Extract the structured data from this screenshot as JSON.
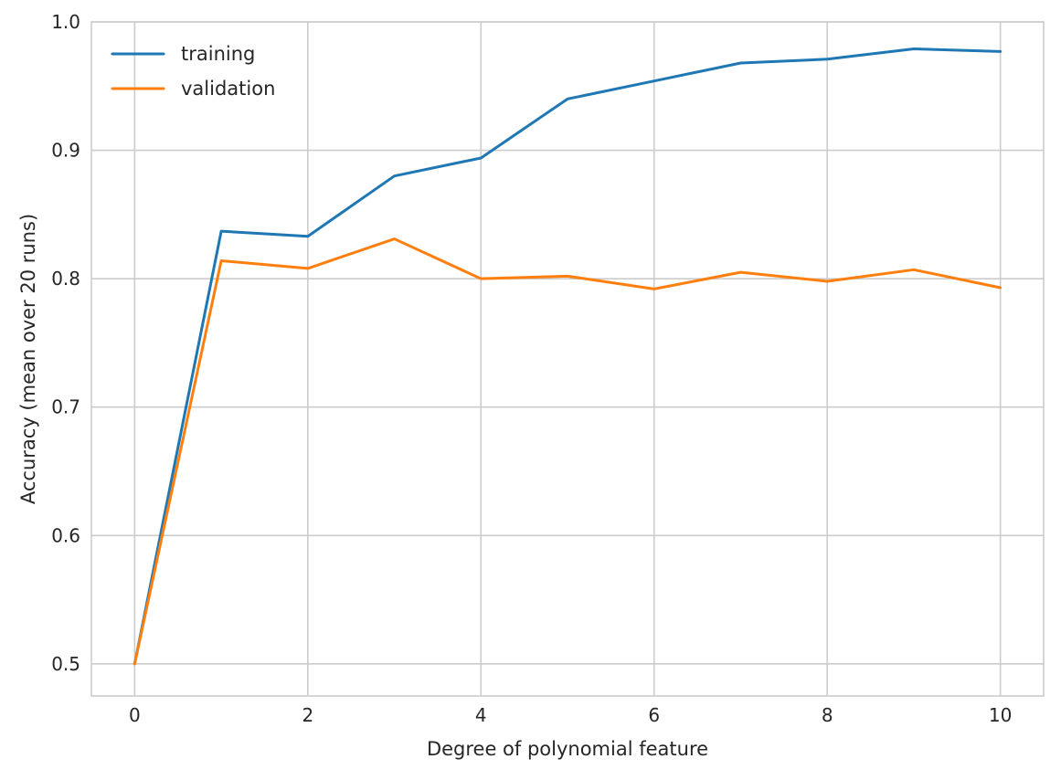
{
  "chart_data": {
    "type": "line",
    "title": "",
    "xlabel": "Degree of polynomial feature",
    "ylabel": "Accuracy (mean over 20 runs)",
    "x": [
      0,
      1,
      2,
      3,
      4,
      5,
      6,
      7,
      8,
      9,
      10
    ],
    "xlim": [
      -0.5,
      10.5
    ],
    "ylim": [
      0.475,
      1.0
    ],
    "xticks": [
      0,
      2,
      4,
      6,
      8,
      10
    ],
    "xtick_labels": [
      "0",
      "2",
      "4",
      "6",
      "8",
      "10"
    ],
    "yticks": [
      0.5,
      0.6,
      0.7,
      0.8,
      0.9,
      1.0
    ],
    "ytick_labels": [
      "0.5",
      "0.6",
      "0.7",
      "0.8",
      "0.9",
      "1.0"
    ],
    "grid": true,
    "legend": {
      "position": "upper-left"
    },
    "series": [
      {
        "name": "training",
        "color": "#1f77b4",
        "values": [
          0.5,
          0.837,
          0.833,
          0.88,
          0.894,
          0.94,
          0.954,
          0.968,
          0.971,
          0.979,
          0.977
        ]
      },
      {
        "name": "validation",
        "color": "#ff7f0e",
        "values": [
          0.5,
          0.814,
          0.808,
          0.831,
          0.8,
          0.802,
          0.792,
          0.805,
          0.798,
          0.807,
          0.793
        ]
      }
    ]
  }
}
